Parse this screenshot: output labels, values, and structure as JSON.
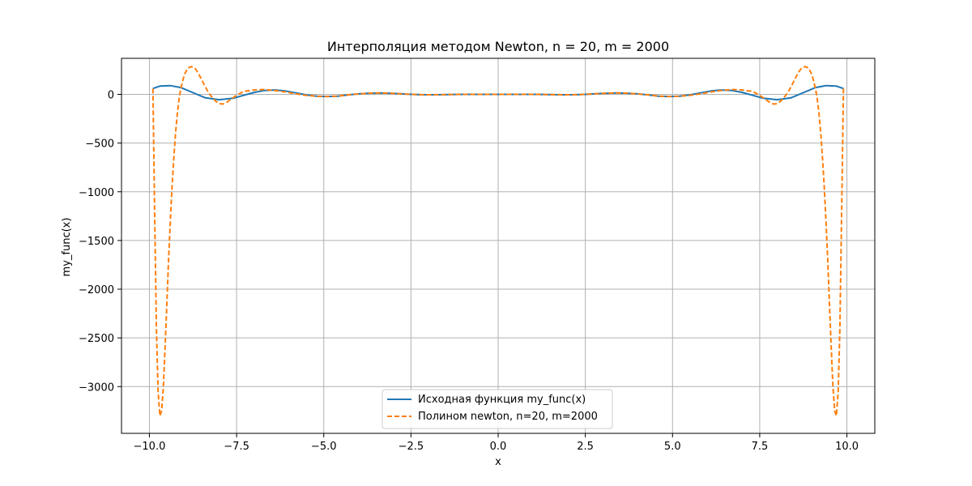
{
  "chart_data": {
    "type": "line",
    "title": "Интерполяция методом Newton, n = 20, m = 2000",
    "xlabel": "x",
    "ylabel": "my_func(x)",
    "xlim": [
      -10.8,
      10.8
    ],
    "ylim": [
      -3480,
      370
    ],
    "xticks": [
      -10.0,
      -7.5,
      -5.0,
      -2.5,
      0.0,
      2.5,
      5.0,
      7.5,
      10.0
    ],
    "xtick_labels": [
      "−10.0",
      "−7.5",
      "−5.0",
      "−2.5",
      "0.0",
      "2.5",
      "5.0",
      "7.5",
      "10.0"
    ],
    "yticks": [
      0,
      -500,
      -1000,
      -1500,
      -2000,
      -2500,
      -3000
    ],
    "ytick_labels": [
      "0",
      "−500",
      "−1000",
      "−1500",
      "−2000",
      "−2500",
      "−3000"
    ],
    "grid": true,
    "legend_position": "lower-center",
    "series": [
      {
        "name": "Исходная функция my_func(x)",
        "color": "#1f77b4",
        "style": "solid",
        "x": [
          -9.9,
          -9.7,
          -9.4,
          -9.1,
          -8.8,
          -8.4,
          -8.0,
          -7.6,
          -7.3,
          -7.0,
          -6.7,
          -6.4,
          -6.1,
          -5.8,
          -5.5,
          -5.2,
          -4.9,
          -4.6,
          -4.3,
          -4.0,
          -3.7,
          -3.4,
          -3.1,
          -2.8,
          -2.5,
          -2.2,
          -1.9,
          -1.6,
          -1.3,
          -1.0,
          -0.5,
          0.0,
          0.5,
          1.0,
          1.3,
          1.6,
          1.9,
          2.2,
          2.5,
          2.8,
          3.1,
          3.4,
          3.7,
          4.0,
          4.3,
          4.6,
          4.9,
          5.2,
          5.5,
          5.8,
          6.1,
          6.4,
          6.7,
          7.0,
          7.3,
          7.6,
          8.0,
          8.4,
          8.8,
          9.1,
          9.4,
          9.7,
          9.9
        ],
        "y": [
          60,
          85,
          90,
          70,
          25,
          -35,
          -55,
          -40,
          -10,
          20,
          40,
          45,
          35,
          15,
          -5,
          -18,
          -22,
          -18,
          -5,
          5,
          12,
          15,
          12,
          6,
          0,
          -3,
          -4,
          -3,
          -1,
          0,
          0,
          0,
          0,
          0,
          -1,
          -3,
          -4,
          -3,
          0,
          6,
          12,
          15,
          12,
          5,
          -5,
          -18,
          -22,
          -18,
          -5,
          15,
          35,
          45,
          40,
          20,
          -10,
          -40,
          -55,
          -35,
          25,
          70,
          90,
          85,
          60
        ]
      },
      {
        "name": "Полином newton, n=20, m=2000",
        "color": "#ff7f0e",
        "style": "dashed",
        "x": [
          -9.9,
          -9.85,
          -9.8,
          -9.75,
          -9.7,
          -9.65,
          -9.6,
          -9.55,
          -9.5,
          -9.45,
          -9.4,
          -9.35,
          -9.3,
          -9.25,
          -9.2,
          -9.15,
          -9.1,
          -9.0,
          -8.9,
          -8.8,
          -8.7,
          -8.6,
          -8.5,
          -8.4,
          -8.3,
          -8.2,
          -8.1,
          -8.0,
          -7.9,
          -7.8,
          -7.7,
          -7.5,
          -7.3,
          -7.0,
          -6.7,
          -6.4,
          -6.1,
          -5.8,
          -5.5,
          -5.2,
          -4.9,
          -4.6,
          -4.3,
          -4.0,
          -3.7,
          -3.4,
          -3.1,
          -2.8,
          -2.5,
          -2.2,
          -1.9,
          -1.6,
          -1.3,
          -1.0,
          -0.5,
          0.0,
          0.5,
          1.0,
          1.3,
          1.6,
          1.9,
          2.2,
          2.5,
          2.8,
          3.1,
          3.4,
          3.7,
          4.0,
          4.3,
          4.6,
          4.9,
          5.2,
          5.5,
          5.8,
          6.1,
          6.4,
          6.7,
          7.0,
          7.3,
          7.5,
          7.7,
          7.8,
          7.9,
          8.0,
          8.1,
          8.2,
          8.3,
          8.4,
          8.5,
          8.6,
          8.7,
          8.8,
          8.9,
          9.0,
          9.1,
          9.15,
          9.2,
          9.25,
          9.3,
          9.35,
          9.4,
          9.45,
          9.5,
          9.55,
          9.6,
          9.65,
          9.7,
          9.75,
          9.8,
          9.85,
          9.9
        ],
        "y": [
          60,
          -1200,
          -2400,
          -3050,
          -3300,
          -3250,
          -3000,
          -2600,
          -2150,
          -1700,
          -1300,
          -950,
          -650,
          -400,
          -200,
          -50,
          60,
          200,
          270,
          285,
          270,
          220,
          150,
          80,
          15,
          -30,
          -70,
          -95,
          -100,
          -85,
          -60,
          -10,
          30,
          45,
          50,
          40,
          25,
          5,
          -10,
          -20,
          -22,
          -18,
          -5,
          5,
          12,
          15,
          12,
          6,
          0,
          -3,
          -4,
          -3,
          -1,
          0,
          0,
          0,
          0,
          0,
          -1,
          -3,
          -4,
          -3,
          0,
          6,
          12,
          15,
          12,
          5,
          -5,
          -18,
          -22,
          -20,
          -10,
          5,
          25,
          40,
          50,
          45,
          30,
          -10,
          -60,
          -85,
          -100,
          -95,
          -70,
          -30,
          15,
          80,
          150,
          220,
          270,
          285,
          270,
          200,
          60,
          -50,
          -200,
          -400,
          -650,
          -950,
          -1300,
          -1700,
          -2150,
          -2600,
          -3000,
          -3250,
          -3300,
          -3050,
          -2400,
          -1200,
          60
        ]
      }
    ]
  }
}
